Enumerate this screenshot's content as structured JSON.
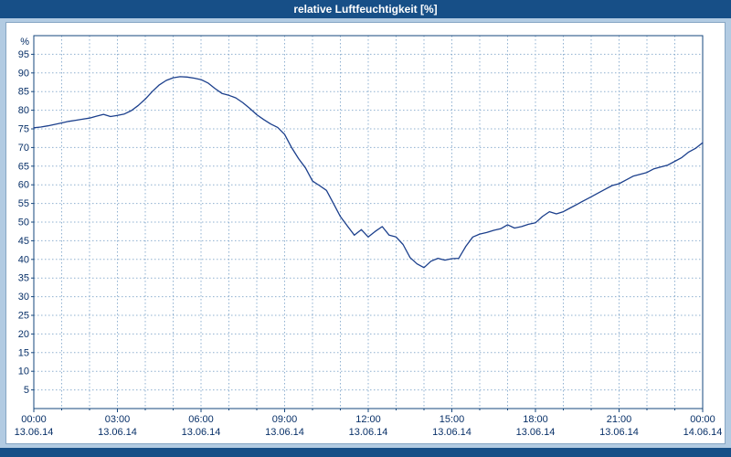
{
  "window": {
    "title": "relative Luftfeuchtigkeit [%]"
  },
  "colors": {
    "frame": "#174f87",
    "background": "#b2cbe2",
    "panel": "#ffffff",
    "line": "#1b3f8c",
    "grid": "#8fb0d0",
    "plot_border": "#16477e",
    "axis_text": "#083068"
  },
  "chart_data": {
    "type": "line",
    "title": "relative Luftfeuchtigkeit [%]",
    "xlabel": "",
    "ylabel": "%",
    "ylim": [
      0,
      100
    ],
    "xlim_hours": [
      0,
      24
    ],
    "grid": true,
    "legend_position": "none",
    "y_ticks": [
      5,
      10,
      15,
      20,
      25,
      30,
      35,
      40,
      45,
      50,
      55,
      60,
      65,
      70,
      75,
      80,
      85,
      90,
      95
    ],
    "x_minor_step_hours": 1,
    "x_ticks": [
      {
        "hour": 0,
        "time": "00:00",
        "date": "13.06.14"
      },
      {
        "hour": 3,
        "time": "03:00",
        "date": "13.06.14"
      },
      {
        "hour": 6,
        "time": "06:00",
        "date": "13.06.14"
      },
      {
        "hour": 9,
        "time": "09:00",
        "date": "13.06.14"
      },
      {
        "hour": 12,
        "time": "12:00",
        "date": "13.06.14"
      },
      {
        "hour": 15,
        "time": "15:00",
        "date": "13.06.14"
      },
      {
        "hour": 18,
        "time": "18:00",
        "date": "13.06.14"
      },
      {
        "hour": 21,
        "time": "21:00",
        "date": "13.06.14"
      },
      {
        "hour": 24,
        "time": "00:00",
        "date": "14.06.14"
      }
    ],
    "series": [
      {
        "name": "relative Luftfeuchtigkeit",
        "points": [
          [
            0,
            75.3
          ],
          [
            0.25,
            75.5
          ],
          [
            0.5,
            75.8
          ],
          [
            0.75,
            76.2
          ],
          [
            1,
            76.6
          ],
          [
            1.25,
            77
          ],
          [
            1.5,
            77.3
          ],
          [
            1.75,
            77.6
          ],
          [
            2,
            77.9
          ],
          [
            2.25,
            78.4
          ],
          [
            2.5,
            78.9
          ],
          [
            2.75,
            78.3
          ],
          [
            3,
            78.6
          ],
          [
            3.25,
            79
          ],
          [
            3.5,
            79.9
          ],
          [
            3.75,
            81.3
          ],
          [
            4,
            83
          ],
          [
            4.25,
            85
          ],
          [
            4.5,
            86.8
          ],
          [
            4.75,
            88
          ],
          [
            5,
            88.7
          ],
          [
            5.25,
            89
          ],
          [
            5.5,
            88.9
          ],
          [
            5.75,
            88.6
          ],
          [
            6,
            88.2
          ],
          [
            6.25,
            87.3
          ],
          [
            6.5,
            85.8
          ],
          [
            6.75,
            84.5
          ],
          [
            7,
            84
          ],
          [
            7.25,
            83.3
          ],
          [
            7.5,
            82
          ],
          [
            7.75,
            80.5
          ],
          [
            8,
            78.8
          ],
          [
            8.25,
            77.5
          ],
          [
            8.5,
            76.3
          ],
          [
            8.75,
            75.4
          ],
          [
            9,
            73.5
          ],
          [
            9.25,
            70
          ],
          [
            9.5,
            67
          ],
          [
            9.75,
            64.5
          ],
          [
            10,
            61
          ],
          [
            10.25,
            59.8
          ],
          [
            10.5,
            58.5
          ],
          [
            10.75,
            55
          ],
          [
            11,
            51.5
          ],
          [
            11.25,
            49
          ],
          [
            11.5,
            46.5
          ],
          [
            11.75,
            48
          ],
          [
            12,
            46
          ],
          [
            12.25,
            47.5
          ],
          [
            12.5,
            48.8
          ],
          [
            12.75,
            46.5
          ],
          [
            13,
            46
          ],
          [
            13.25,
            44
          ],
          [
            13.5,
            40.5
          ],
          [
            13.75,
            38.8
          ],
          [
            14,
            37.8
          ],
          [
            14.25,
            39.5
          ],
          [
            14.5,
            40.3
          ],
          [
            14.75,
            39.8
          ],
          [
            15,
            40.2
          ],
          [
            15.25,
            40.3
          ],
          [
            15.5,
            43.5
          ],
          [
            15.75,
            46
          ],
          [
            16,
            46.8
          ],
          [
            16.25,
            47.2
          ],
          [
            16.5,
            47.8
          ],
          [
            16.75,
            48.2
          ],
          [
            17,
            49.3
          ],
          [
            17.25,
            48.4
          ],
          [
            17.5,
            48.8
          ],
          [
            17.75,
            49.4
          ],
          [
            18,
            49.8
          ],
          [
            18.25,
            51.5
          ],
          [
            18.5,
            52.8
          ],
          [
            18.75,
            52.2
          ],
          [
            19,
            52.8
          ],
          [
            19.25,
            53.8
          ],
          [
            19.5,
            54.8
          ],
          [
            19.75,
            55.8
          ],
          [
            20,
            56.8
          ],
          [
            20.25,
            57.8
          ],
          [
            20.5,
            58.8
          ],
          [
            20.75,
            59.8
          ],
          [
            21,
            60.3
          ],
          [
            21.25,
            61.3
          ],
          [
            21.5,
            62.3
          ],
          [
            21.75,
            62.8
          ],
          [
            22,
            63.3
          ],
          [
            22.25,
            64.3
          ],
          [
            22.5,
            64.8
          ],
          [
            22.75,
            65.3
          ],
          [
            23,
            66.3
          ],
          [
            23.25,
            67.3
          ],
          [
            23.5,
            68.8
          ],
          [
            23.75,
            69.8
          ],
          [
            24,
            71.3
          ]
        ]
      }
    ]
  }
}
